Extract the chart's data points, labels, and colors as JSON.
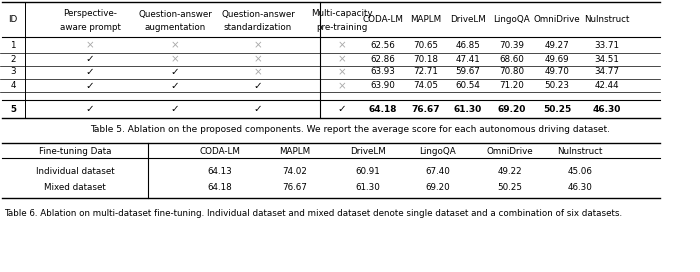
{
  "table5_rows": [
    {
      "id": "1",
      "checks": [
        "x",
        "x",
        "x",
        "x"
      ],
      "vals": [
        "62.56",
        "70.65",
        "46.85",
        "70.39",
        "49.27",
        "33.71"
      ]
    },
    {
      "id": "2",
      "checks": [
        "v",
        "x",
        "x",
        "x"
      ],
      "vals": [
        "62.86",
        "70.18",
        "47.41",
        "68.60",
        "49.69",
        "34.51"
      ]
    },
    {
      "id": "3",
      "checks": [
        "v",
        "v",
        "x",
        "x"
      ],
      "vals": [
        "63.93",
        "72.71",
        "59.67",
        "70.80",
        "49.70",
        "34.77"
      ]
    },
    {
      "id": "4",
      "checks": [
        "v",
        "v",
        "v",
        "x"
      ],
      "vals": [
        "63.90",
        "74.05",
        "60.54",
        "71.20",
        "50.23",
        "42.44"
      ]
    },
    {
      "id": "5",
      "checks": [
        "v",
        "v",
        "v",
        "v"
      ],
      "vals": [
        "64.18",
        "76.67",
        "61.30",
        "69.20",
        "50.25",
        "46.30"
      ]
    }
  ],
  "table5_caption": "Table 5. Ablation on the proposed components. We report the average score for each autonomous driving dataset.",
  "table6_rows": [
    [
      "Individual dataset",
      "64.13",
      "74.02",
      "60.91",
      "67.40",
      "49.22",
      "45.06"
    ],
    [
      "Mixed dataset",
      "64.18",
      "76.67",
      "61.30",
      "69.20",
      "50.25",
      "46.30"
    ]
  ],
  "table6_caption": "Table 6. Ablation on multi-dataset fine-tuning. Individual dataset and mixed dataset denote single dataset and a combination of six datasets."
}
